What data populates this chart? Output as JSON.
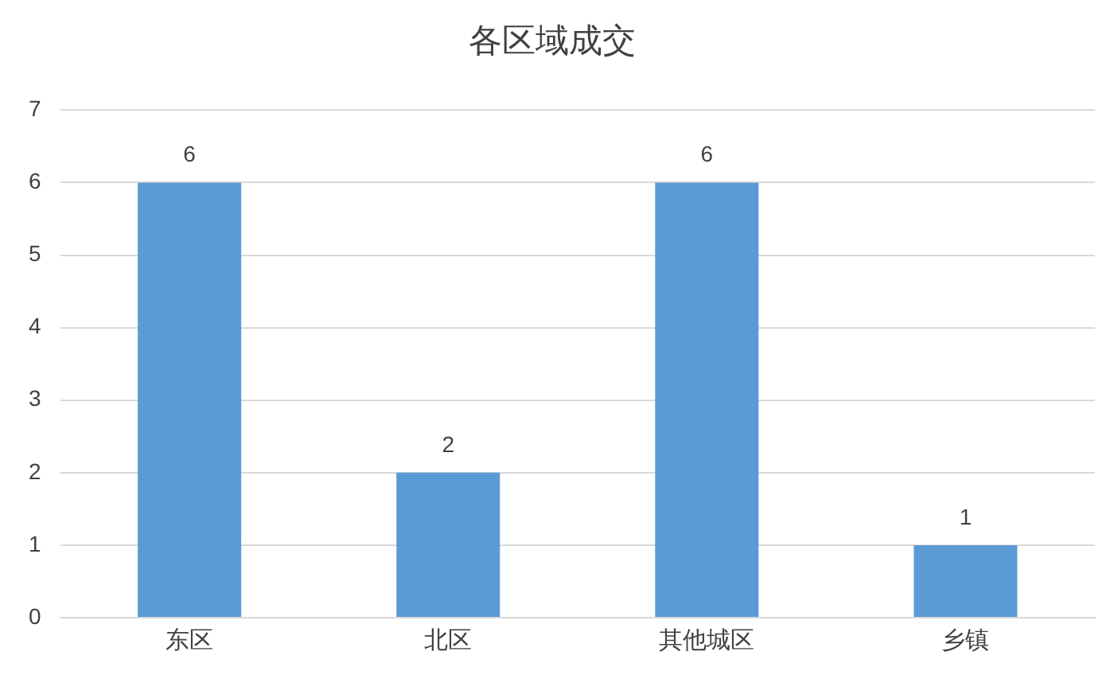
{
  "chart_data": {
    "type": "bar",
    "title": "各区域成交",
    "categories": [
      "东区",
      "北区",
      "其他城区",
      "乡镇"
    ],
    "values": [
      6,
      2,
      6,
      1
    ],
    "color": "#5b9bd5",
    "ylim": [
      0,
      7
    ],
    "yticks": [
      0,
      1,
      2,
      3,
      4,
      5,
      6,
      7
    ],
    "grid": "y",
    "data_labels": true
  }
}
